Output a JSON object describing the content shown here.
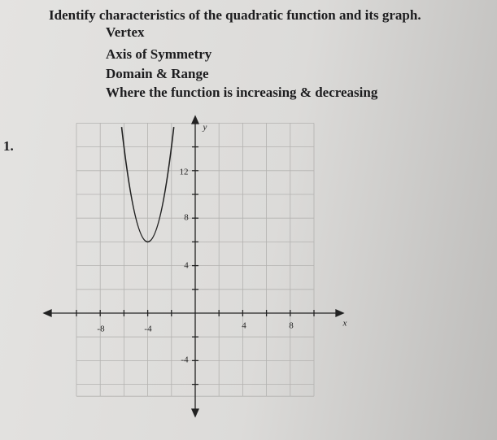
{
  "header": {
    "title": "Identify characteristics of the quadratic function and its graph."
  },
  "items": [
    "Vertex",
    "Axis of Symmetry",
    "Domain & Range",
    "Where the function is increasing & decreasing"
  ],
  "problem": {
    "number": "1.",
    "graph": {
      "x_axis_label": "x",
      "y_axis_label": "y",
      "x_tick_labels": [
        "-8",
        "-4",
        "4",
        "8"
      ],
      "y_tick_labels": [
        "12",
        "8",
        "4",
        "-4"
      ]
    }
  }
}
